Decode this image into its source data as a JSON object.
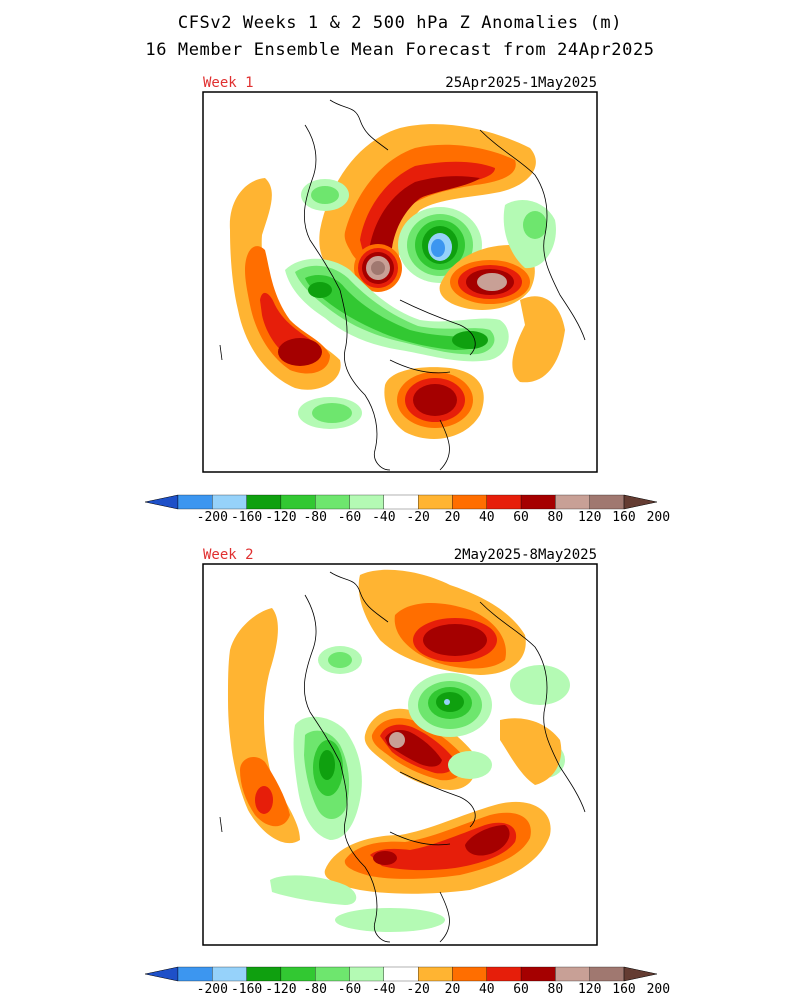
{
  "header": {
    "title_line1": "CFSv2 Weeks 1 & 2 500 hPa Z Anomalies (m)",
    "title_line2": "16 Member Ensemble Mean Forecast from 24Apr2025"
  },
  "colorbar": {
    "levels": [
      "-200",
      "-160",
      "-120",
      "-80",
      "-60",
      "-40",
      "-20",
      "20",
      "40",
      "60",
      "80",
      "120",
      "160",
      "200"
    ],
    "colors": [
      "#1e50c8",
      "#3c96f0",
      "#96d2fa",
      "#0fa00f",
      "#32c832",
      "#6ee66e",
      "#b4fab4",
      "#ffffff",
      "#ffb432",
      "#ff6e00",
      "#e61e0a",
      "#a50000",
      "#c8a096",
      "#a07870",
      "#643c32"
    ]
  },
  "panels": [
    {
      "week_label": "Week 1",
      "date_range": "25Apr2025-1May2025",
      "features": [
        {
          "type": "positive",
          "location": "north-atlantic-arctic"
        },
        {
          "type": "positive",
          "location": "east-siberia-greenland"
        },
        {
          "type": "negative",
          "location": "canadian-archipelago"
        },
        {
          "type": "positive",
          "location": "northeast-pacific"
        },
        {
          "type": "positive",
          "location": "east-asia"
        }
      ]
    },
    {
      "week_label": "Week 2",
      "date_range": "2May2025-8May2025",
      "features": [
        {
          "type": "positive",
          "location": "north-atlantic"
        },
        {
          "type": "positive",
          "location": "arctic-ocean"
        },
        {
          "type": "negative",
          "location": "greenland"
        },
        {
          "type": "positive",
          "location": "east-asia"
        }
      ]
    }
  ]
}
